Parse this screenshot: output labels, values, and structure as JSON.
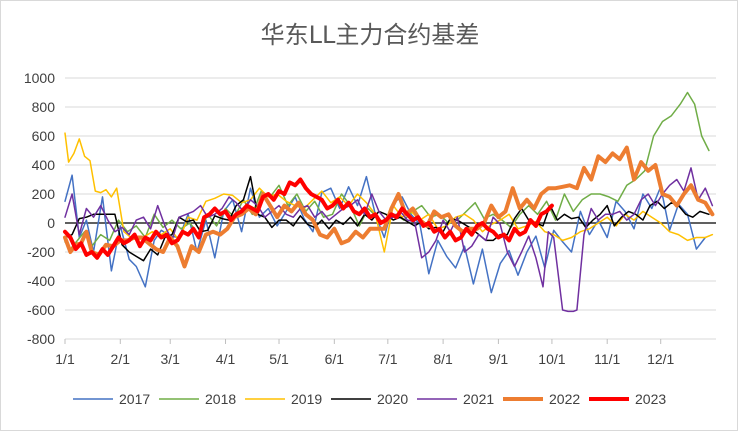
{
  "chart_data": {
    "type": "line",
    "title": "华东LL主力合约基差",
    "xlabel": "",
    "ylabel": "",
    "ylim": [
      -800,
      1000
    ],
    "yticks": [
      -800,
      -600,
      -400,
      -200,
      0,
      200,
      400,
      600,
      800,
      1000
    ],
    "xticks": [
      "1/1",
      "2/1",
      "3/1",
      "4/1",
      "5/1",
      "6/1",
      "7/1",
      "8/1",
      "9/1",
      "10/1",
      "11/1",
      "12/1"
    ],
    "grid": "horizontal",
    "legend_position": "bottom",
    "x_unit": "day of year",
    "series": [
      {
        "name": "2017",
        "color": "#4472c4",
        "width": 1.5,
        "x": [
          1,
          5,
          9,
          13,
          17,
          22,
          27,
          32,
          37,
          41,
          46,
          51,
          55,
          60,
          65,
          70,
          75,
          80,
          85,
          90,
          95,
          100,
          105,
          110,
          115,
          120,
          125,
          130,
          135,
          140,
          145,
          150,
          155,
          160,
          165,
          170,
          175,
          180,
          185,
          190,
          195,
          200,
          205,
          210,
          215,
          220,
          225,
          230,
          235,
          240,
          245,
          250,
          255,
          260,
          265,
          270,
          275,
          280,
          285,
          290,
          295,
          300,
          305,
          310,
          315,
          320,
          325,
          330,
          335,
          340,
          345,
          350,
          355,
          360
        ],
        "y": [
          150,
          330,
          -100,
          20,
          -200,
          180,
          -330,
          -20,
          -250,
          -300,
          -440,
          -120,
          -50,
          -90,
          -100,
          60,
          -200,
          20,
          -240,
          80,
          160,
          -60,
          240,
          40,
          100,
          -20,
          80,
          180,
          30,
          -60,
          210,
          240,
          100,
          250,
          120,
          320,
          60,
          -100,
          140,
          180,
          60,
          -10,
          -350,
          -120,
          -230,
          -310,
          -160,
          -420,
          -180,
          -480,
          -280,
          -190,
          -360,
          -200,
          -90,
          -310,
          -50,
          -130,
          -200,
          80,
          -80,
          20,
          -100,
          150,
          80,
          -40,
          200,
          100,
          250,
          -50,
          130,
          60,
          -180,
          -100
        ]
      },
      {
        "name": "2018",
        "color": "#70ad47",
        "width": 1.5,
        "x": [
          1,
          4,
          8,
          12,
          16,
          21,
          26,
          31,
          36,
          41,
          46,
          51,
          56,
          61,
          66,
          71,
          76,
          81,
          86,
          91,
          96,
          101,
          106,
          111,
          116,
          121,
          126,
          131,
          136,
          141,
          146,
          151,
          156,
          161,
          166,
          171,
          176,
          181,
          186,
          191,
          196,
          201,
          206,
          211,
          216,
          221,
          226,
          231,
          236,
          241,
          246,
          251,
          256,
          261,
          266,
          271,
          276,
          281,
          286,
          291,
          296,
          301,
          306,
          311,
          316,
          321,
          326,
          331,
          336,
          341,
          346,
          350,
          354,
          358,
          362
        ],
        "y": [
          -130,
          -180,
          -120,
          -60,
          -160,
          -80,
          -120,
          20,
          -60,
          -20,
          -100,
          60,
          -30,
          20,
          -40,
          0,
          -80,
          60,
          -20,
          100,
          40,
          160,
          60,
          220,
          180,
          260,
          120,
          200,
          80,
          150,
          40,
          60,
          200,
          120,
          -20,
          100,
          40,
          -10,
          60,
          20,
          80,
          120,
          40,
          60,
          0,
          20,
          80,
          140,
          30,
          60,
          20,
          -30,
          60,
          120,
          60,
          150,
          20,
          200,
          80,
          160,
          200,
          200,
          180,
          150,
          260,
          300,
          360,
          600,
          700,
          740,
          820,
          900,
          820,
          600,
          500
        ]
      },
      {
        "name": "2019",
        "color": "#ffc000",
        "width": 1.5,
        "x": [
          1,
          3,
          6,
          9,
          12,
          15,
          18,
          21,
          24,
          27,
          30,
          34,
          38,
          42,
          46,
          50,
          55,
          60,
          65,
          70,
          75,
          80,
          85,
          90,
          95,
          100,
          105,
          110,
          115,
          120,
          125,
          130,
          135,
          140,
          145,
          150,
          155,
          160,
          165,
          170,
          175,
          180,
          185,
          190,
          195,
          200,
          205,
          210,
          215,
          220,
          225,
          230,
          235,
          240,
          245,
          250,
          255,
          260,
          265,
          270,
          275,
          280,
          285,
          290,
          295,
          300,
          305,
          310,
          315,
          320,
          325,
          330,
          335,
          340,
          345,
          350,
          355,
          360,
          364
        ],
        "y": [
          620,
          420,
          480,
          580,
          460,
          430,
          220,
          210,
          230,
          180,
          240,
          -60,
          -100,
          -120,
          -90,
          -60,
          -80,
          -40,
          -120,
          40,
          20,
          150,
          170,
          200,
          190,
          140,
          160,
          240,
          180,
          200,
          150,
          120,
          100,
          160,
          220,
          140,
          180,
          120,
          200,
          140,
          60,
          -200,
          120,
          40,
          80,
          20,
          60,
          -40,
          -20,
          40,
          60,
          20,
          -60,
          -10,
          20,
          60,
          -40,
          -20,
          10,
          -60,
          -80,
          -120,
          -100,
          -60,
          -40,
          0,
          40,
          -20,
          60,
          20,
          80,
          40,
          0,
          -60,
          -80,
          -120,
          -100,
          -100,
          -80
        ]
      },
      {
        "name": "2020",
        "color": "#000000",
        "width": 1.5,
        "x": [
          1,
          5,
          9,
          13,
          17,
          21,
          25,
          29,
          33,
          37,
          41,
          45,
          49,
          53,
          57,
          61,
          65,
          69,
          73,
          77,
          81,
          85,
          89,
          93,
          97,
          101,
          105,
          109,
          113,
          117,
          121,
          125,
          129,
          133,
          137,
          141,
          145,
          149,
          153,
          157,
          161,
          165,
          169,
          173,
          177,
          181,
          185,
          189,
          193,
          197,
          201,
          205,
          209,
          213,
          217,
          221,
          225,
          229,
          233,
          237,
          241,
          245,
          249,
          253,
          257,
          261,
          265,
          269,
          273,
          277,
          281,
          285,
          289,
          293,
          297,
          301,
          305,
          309,
          313,
          317,
          321,
          325,
          329,
          333,
          337,
          341,
          345,
          349,
          353,
          357,
          362
        ],
        "y": [
          -100,
          -80,
          30,
          40,
          60,
          60,
          60,
          60,
          -150,
          -200,
          -230,
          -260,
          -180,
          -220,
          -100,
          -80,
          40,
          10,
          20,
          -60,
          -50,
          50,
          30,
          20,
          120,
          160,
          320,
          60,
          40,
          -30,
          20,
          20,
          -20,
          50,
          -10,
          -30,
          20,
          -40,
          20,
          -10,
          40,
          -20,
          60,
          20,
          80,
          60,
          20,
          40,
          10,
          -20,
          10,
          -40,
          -30,
          -60,
          30,
          20,
          -10,
          -40,
          -80,
          -120,
          -120,
          -80,
          -80,
          30,
          100,
          20,
          0,
          -20,
          120,
          20,
          60,
          30,
          40,
          -30,
          20,
          60,
          120,
          -20,
          40,
          80,
          60,
          20,
          120,
          150,
          100,
          140,
          120,
          60,
          40,
          80,
          60
        ]
      },
      {
        "name": "2021",
        "color": "#7030a0",
        "width": 1.5,
        "x": [
          1,
          5,
          9,
          13,
          17,
          21,
          25,
          29,
          33,
          37,
          41,
          45,
          49,
          53,
          57,
          61,
          65,
          69,
          73,
          77,
          81,
          85,
          89,
          93,
          97,
          101,
          105,
          109,
          113,
          117,
          121,
          125,
          129,
          133,
          137,
          141,
          145,
          149,
          153,
          157,
          161,
          165,
          169,
          173,
          177,
          181,
          185,
          189,
          193,
          197,
          201,
          205,
          209,
          213,
          217,
          221,
          225,
          229,
          233,
          237,
          241,
          245,
          249,
          253,
          257,
          261,
          265,
          269,
          272,
          275,
          280,
          283,
          286,
          288,
          292,
          296,
          300,
          304,
          308,
          312,
          316,
          320,
          324,
          328,
          332,
          336,
          340,
          344,
          348,
          352,
          356,
          360,
          364
        ],
        "y": [
          40,
          200,
          -80,
          100,
          40,
          120,
          20,
          -60,
          -30,
          -80,
          20,
          40,
          -40,
          120,
          -20,
          -120,
          40,
          60,
          80,
          120,
          40,
          60,
          100,
          180,
          140,
          80,
          160,
          120,
          40,
          80,
          120,
          60,
          40,
          100,
          120,
          40,
          80,
          20,
          60,
          100,
          120,
          160,
          60,
          200,
          80,
          20,
          40,
          80,
          20,
          10,
          -240,
          -200,
          -120,
          20,
          -60,
          40,
          -200,
          -160,
          -80,
          -120,
          40,
          -10,
          -200,
          -300,
          -200,
          -90,
          -240,
          -440,
          -60,
          -100,
          -600,
          -610,
          -610,
          -600,
          -80,
          100,
          20,
          60,
          60,
          80,
          20,
          60,
          160,
          200,
          120,
          200,
          260,
          300,
          220,
          380,
          160,
          240,
          120
        ]
      },
      {
        "name": "2022",
        "color": "#ed7d31",
        "width": 4,
        "x": [
          1,
          4,
          7,
          10,
          13,
          16,
          20,
          24,
          28,
          32,
          36,
          40,
          44,
          48,
          52,
          56,
          60,
          64,
          68,
          72,
          76,
          80,
          84,
          88,
          92,
          96,
          100,
          104,
          108,
          112,
          116,
          120,
          124,
          128,
          132,
          136,
          140,
          144,
          148,
          152,
          156,
          160,
          164,
          168,
          172,
          176,
          180,
          184,
          188,
          192,
          196,
          200,
          204,
          208,
          212,
          216,
          220,
          224,
          228,
          232,
          236,
          240,
          244,
          248,
          252,
          256,
          260,
          264,
          268,
          272,
          276,
          280,
          284,
          288,
          292,
          296,
          300,
          304,
          308,
          312,
          316,
          320,
          324,
          328,
          332,
          336,
          340,
          344,
          348,
          352,
          356,
          360,
          364
        ],
        "y": [
          -100,
          -200,
          -150,
          -140,
          -60,
          -200,
          -220,
          -150,
          -160,
          -120,
          -120,
          -100,
          -100,
          -140,
          -180,
          -200,
          -100,
          -160,
          -300,
          -160,
          -200,
          -80,
          -60,
          -80,
          -40,
          40,
          60,
          100,
          60,
          200,
          120,
          40,
          120,
          80,
          140,
          60,
          20,
          -80,
          -100,
          -40,
          -140,
          -120,
          -60,
          -100,
          -40,
          -40,
          -40,
          100,
          200,
          60,
          100,
          20,
          -20,
          80,
          40,
          60,
          -20,
          -60,
          -40,
          -40,
          0,
          120,
          40,
          80,
          240,
          100,
          160,
          100,
          200,
          240,
          240,
          250,
          260,
          240,
          380,
          300,
          460,
          420,
          480,
          440,
          520,
          300,
          420,
          360,
          400,
          200,
          180,
          120,
          200,
          260,
          160,
          140,
          60
        ]
      },
      {
        "name": "2023",
        "color": "#ff0000",
        "width": 4,
        "x": [
          1,
          4,
          7,
          10,
          13,
          16,
          19,
          22,
          25,
          28,
          31,
          34,
          37,
          40,
          43,
          46,
          49,
          52,
          55,
          58,
          61,
          64,
          67,
          70,
          73,
          76,
          79,
          82,
          85,
          88,
          91,
          94,
          97,
          100,
          103,
          106,
          109,
          112,
          115,
          118,
          121,
          124,
          127,
          130,
          133,
          136,
          139,
          142,
          145,
          148,
          151,
          154,
          157,
          160,
          163,
          166,
          169,
          172,
          175,
          178,
          181,
          184,
          187,
          190,
          193,
          196,
          199,
          202,
          205,
          208,
          211,
          214,
          217,
          220,
          223,
          226,
          229,
          232,
          235,
          238,
          241,
          244,
          247,
          250,
          253,
          256,
          259,
          262,
          265,
          268,
          271,
          274
        ],
        "y": [
          -60,
          -100,
          -180,
          -140,
          -220,
          -200,
          -240,
          -180,
          -220,
          -160,
          -100,
          -140,
          -120,
          -80,
          -160,
          -100,
          -120,
          -60,
          -100,
          -80,
          -140,
          -120,
          -60,
          -80,
          -40,
          -100,
          40,
          60,
          100,
          60,
          80,
          20,
          60,
          80,
          120,
          100,
          80,
          180,
          200,
          160,
          220,
          200,
          280,
          260,
          300,
          240,
          200,
          180,
          160,
          100,
          120,
          160,
          100,
          140,
          80,
          60,
          100,
          40,
          60,
          0,
          20,
          60,
          40,
          100,
          60,
          20,
          40,
          -20,
          0,
          -60,
          -40,
          -100,
          -60,
          -120,
          -100,
          -40,
          -80,
          -20,
          0,
          -40,
          -60,
          -100,
          -80,
          -120,
          -40,
          -80,
          -60,
          20,
          -20,
          60,
          80,
          120
        ]
      }
    ]
  }
}
